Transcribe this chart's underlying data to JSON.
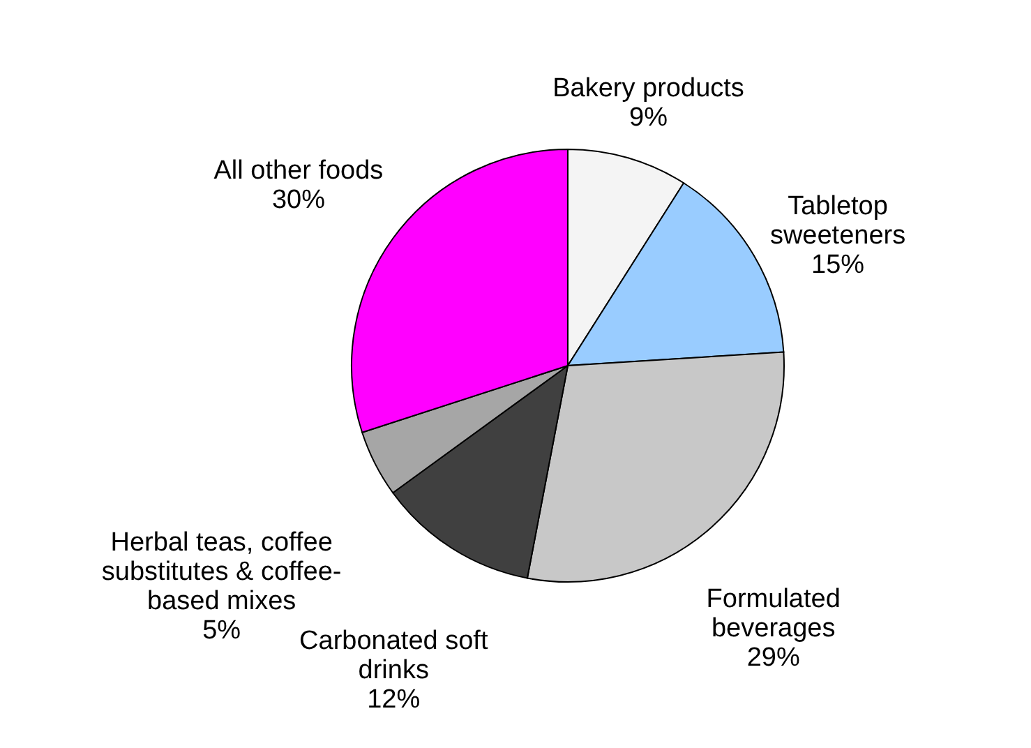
{
  "chart_data": {
    "type": "pie",
    "categories": [
      "Bakery products",
      "Tabletop\nsweeteners",
      "Formulated\nbeverages",
      "Carbonated soft\ndrinks",
      "Herbal teas, coffee\nsubstitutes & coffee-\nbased mixes",
      "All other foods"
    ],
    "values": [
      9,
      15,
      29,
      12,
      5,
      30
    ],
    "value_labels": [
      "9%",
      "15%",
      "29%",
      "12%",
      "5%",
      "30%"
    ],
    "colors": [
      "#f4f4f4",
      "#99ccff",
      "#c8c8c8",
      "#404040",
      "#a6a6a6",
      "#ff00ff"
    ]
  }
}
